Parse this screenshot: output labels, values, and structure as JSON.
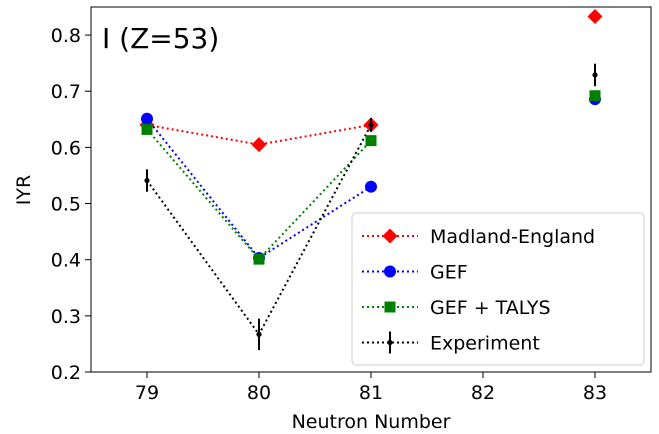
{
  "chart_data": {
    "type": "scatter",
    "annotation": "I (Z=53)",
    "xlabel": "Neutron Number",
    "ylabel": "IYR",
    "xlim": [
      78.5,
      83.5
    ],
    "ylim": [
      0.2,
      0.85
    ],
    "xticks": [
      79,
      80,
      81,
      82,
      83
    ],
    "yticks": [
      0.2,
      0.3,
      0.4,
      0.5,
      0.6,
      0.7,
      0.8
    ],
    "grid": false,
    "legend_position": "lower-right",
    "series": [
      {
        "name": "Madland-England",
        "color": "#ff0000",
        "marker": "diamond",
        "points": [
          {
            "x": 79,
            "y": 0.64
          },
          {
            "x": 80,
            "y": 0.605
          },
          {
            "x": 81,
            "y": 0.64
          },
          {
            "x": 83,
            "y": 0.833
          }
        ],
        "dotted_line_x": [
          79,
          81
        ]
      },
      {
        "name": "GEF",
        "color": "#0000ff",
        "marker": "circle",
        "points": [
          {
            "x": 79,
            "y": 0.651
          },
          {
            "x": 80,
            "y": 0.403
          },
          {
            "x": 81,
            "y": 0.53
          },
          {
            "x": 83,
            "y": 0.686
          }
        ],
        "dotted_line_x": [
          79,
          81
        ]
      },
      {
        "name": "GEF + TALYS",
        "color": "#008000",
        "marker": "square",
        "points": [
          {
            "x": 79,
            "y": 0.632
          },
          {
            "x": 80,
            "y": 0.401
          },
          {
            "x": 81,
            "y": 0.612
          },
          {
            "x": 83,
            "y": 0.692
          }
        ],
        "dotted_line_x": [
          79,
          81
        ]
      },
      {
        "name": "Experiment",
        "color": "#000000",
        "marker": "point-errorbar",
        "points": [
          {
            "x": 79,
            "y": 0.541,
            "err": 0.02
          },
          {
            "x": 80,
            "y": 0.267,
            "err": 0.028
          },
          {
            "x": 81,
            "y": 0.64,
            "err": 0.012
          },
          {
            "x": 83,
            "y": 0.729,
            "err": 0.02
          }
        ],
        "dotted_line_x": [
          79,
          81
        ]
      }
    ]
  }
}
